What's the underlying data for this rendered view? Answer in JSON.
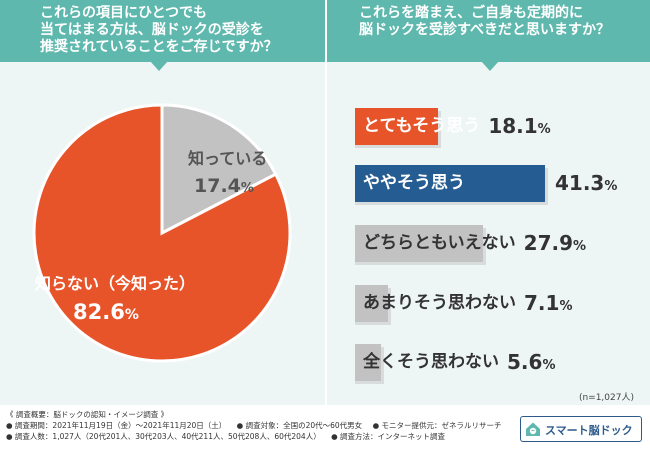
{
  "colors": {
    "header": "#5fb8ad",
    "panel": "#eef6f5",
    "orange": "#e8542a",
    "blue": "#255c92",
    "gray": "#c2c2c2",
    "dark_text": "#333333",
    "gray_text": "#555555"
  },
  "headers": {
    "left": "これらの項目にひとつでも\n当てはまる方は、脳ドックの受診を\n推奨されていることをご存じですか？",
    "right": "これらを踏まえ、ご自身も定期的に\n脳ドックを受診すべきだと思いますか？"
  },
  "chart_data": [
    {
      "type": "pie",
      "categories": [
        "知っている",
        "知らない（今知った）"
      ],
      "values": [
        17.4,
        82.6
      ],
      "unit": "%"
    },
    {
      "type": "bar",
      "orientation": "horizontal",
      "categories": [
        "とてもそう思う",
        "ややそう思う",
        "どちらともいえない",
        "あまりそう思わない",
        "全くそう思わない"
      ],
      "values": [
        18.1,
        41.3,
        27.9,
        7.1,
        5.6
      ],
      "unit": "%",
      "note": "(n=1,027人)"
    }
  ],
  "pie_labels": {
    "known_label": "知っている",
    "known_value": "17.4",
    "unknown_label": "知らない（今知った）",
    "unknown_value": "82.6",
    "unit": "%"
  },
  "bar_labels": [
    {
      "label": "とてもそう思う",
      "value": "18.1",
      "unit": "%"
    },
    {
      "label": "ややそう思う",
      "value": "41.3",
      "unit": "%"
    },
    {
      "label": "どちらともいえない",
      "value": "27.9",
      "unit": "%"
    },
    {
      "label": "あまりそう思わない",
      "value": "7.1",
      "unit": "%"
    },
    {
      "label": "全くそう思わない",
      "value": "5.6",
      "unit": "%"
    }
  ],
  "footer": {
    "title": "《 調査概要：脳ドックの認知・イメージ調査 》",
    "period": "● 調査期間：2021年11月19日（金）～2021年11月20日（土）",
    "target": "● 調査対象：全国の20代～60代男女",
    "provider": "● モニター提供元：ゼネラルリサーチ",
    "count": "● 調査人数：1,027人（20代201人、30代203人、40代211人、50代208人、60代204人）",
    "method": "● 調査方法：インターネット調査"
  },
  "logo": {
    "text": "スマート脳ドック",
    "icon": "brain-house-icon"
  }
}
